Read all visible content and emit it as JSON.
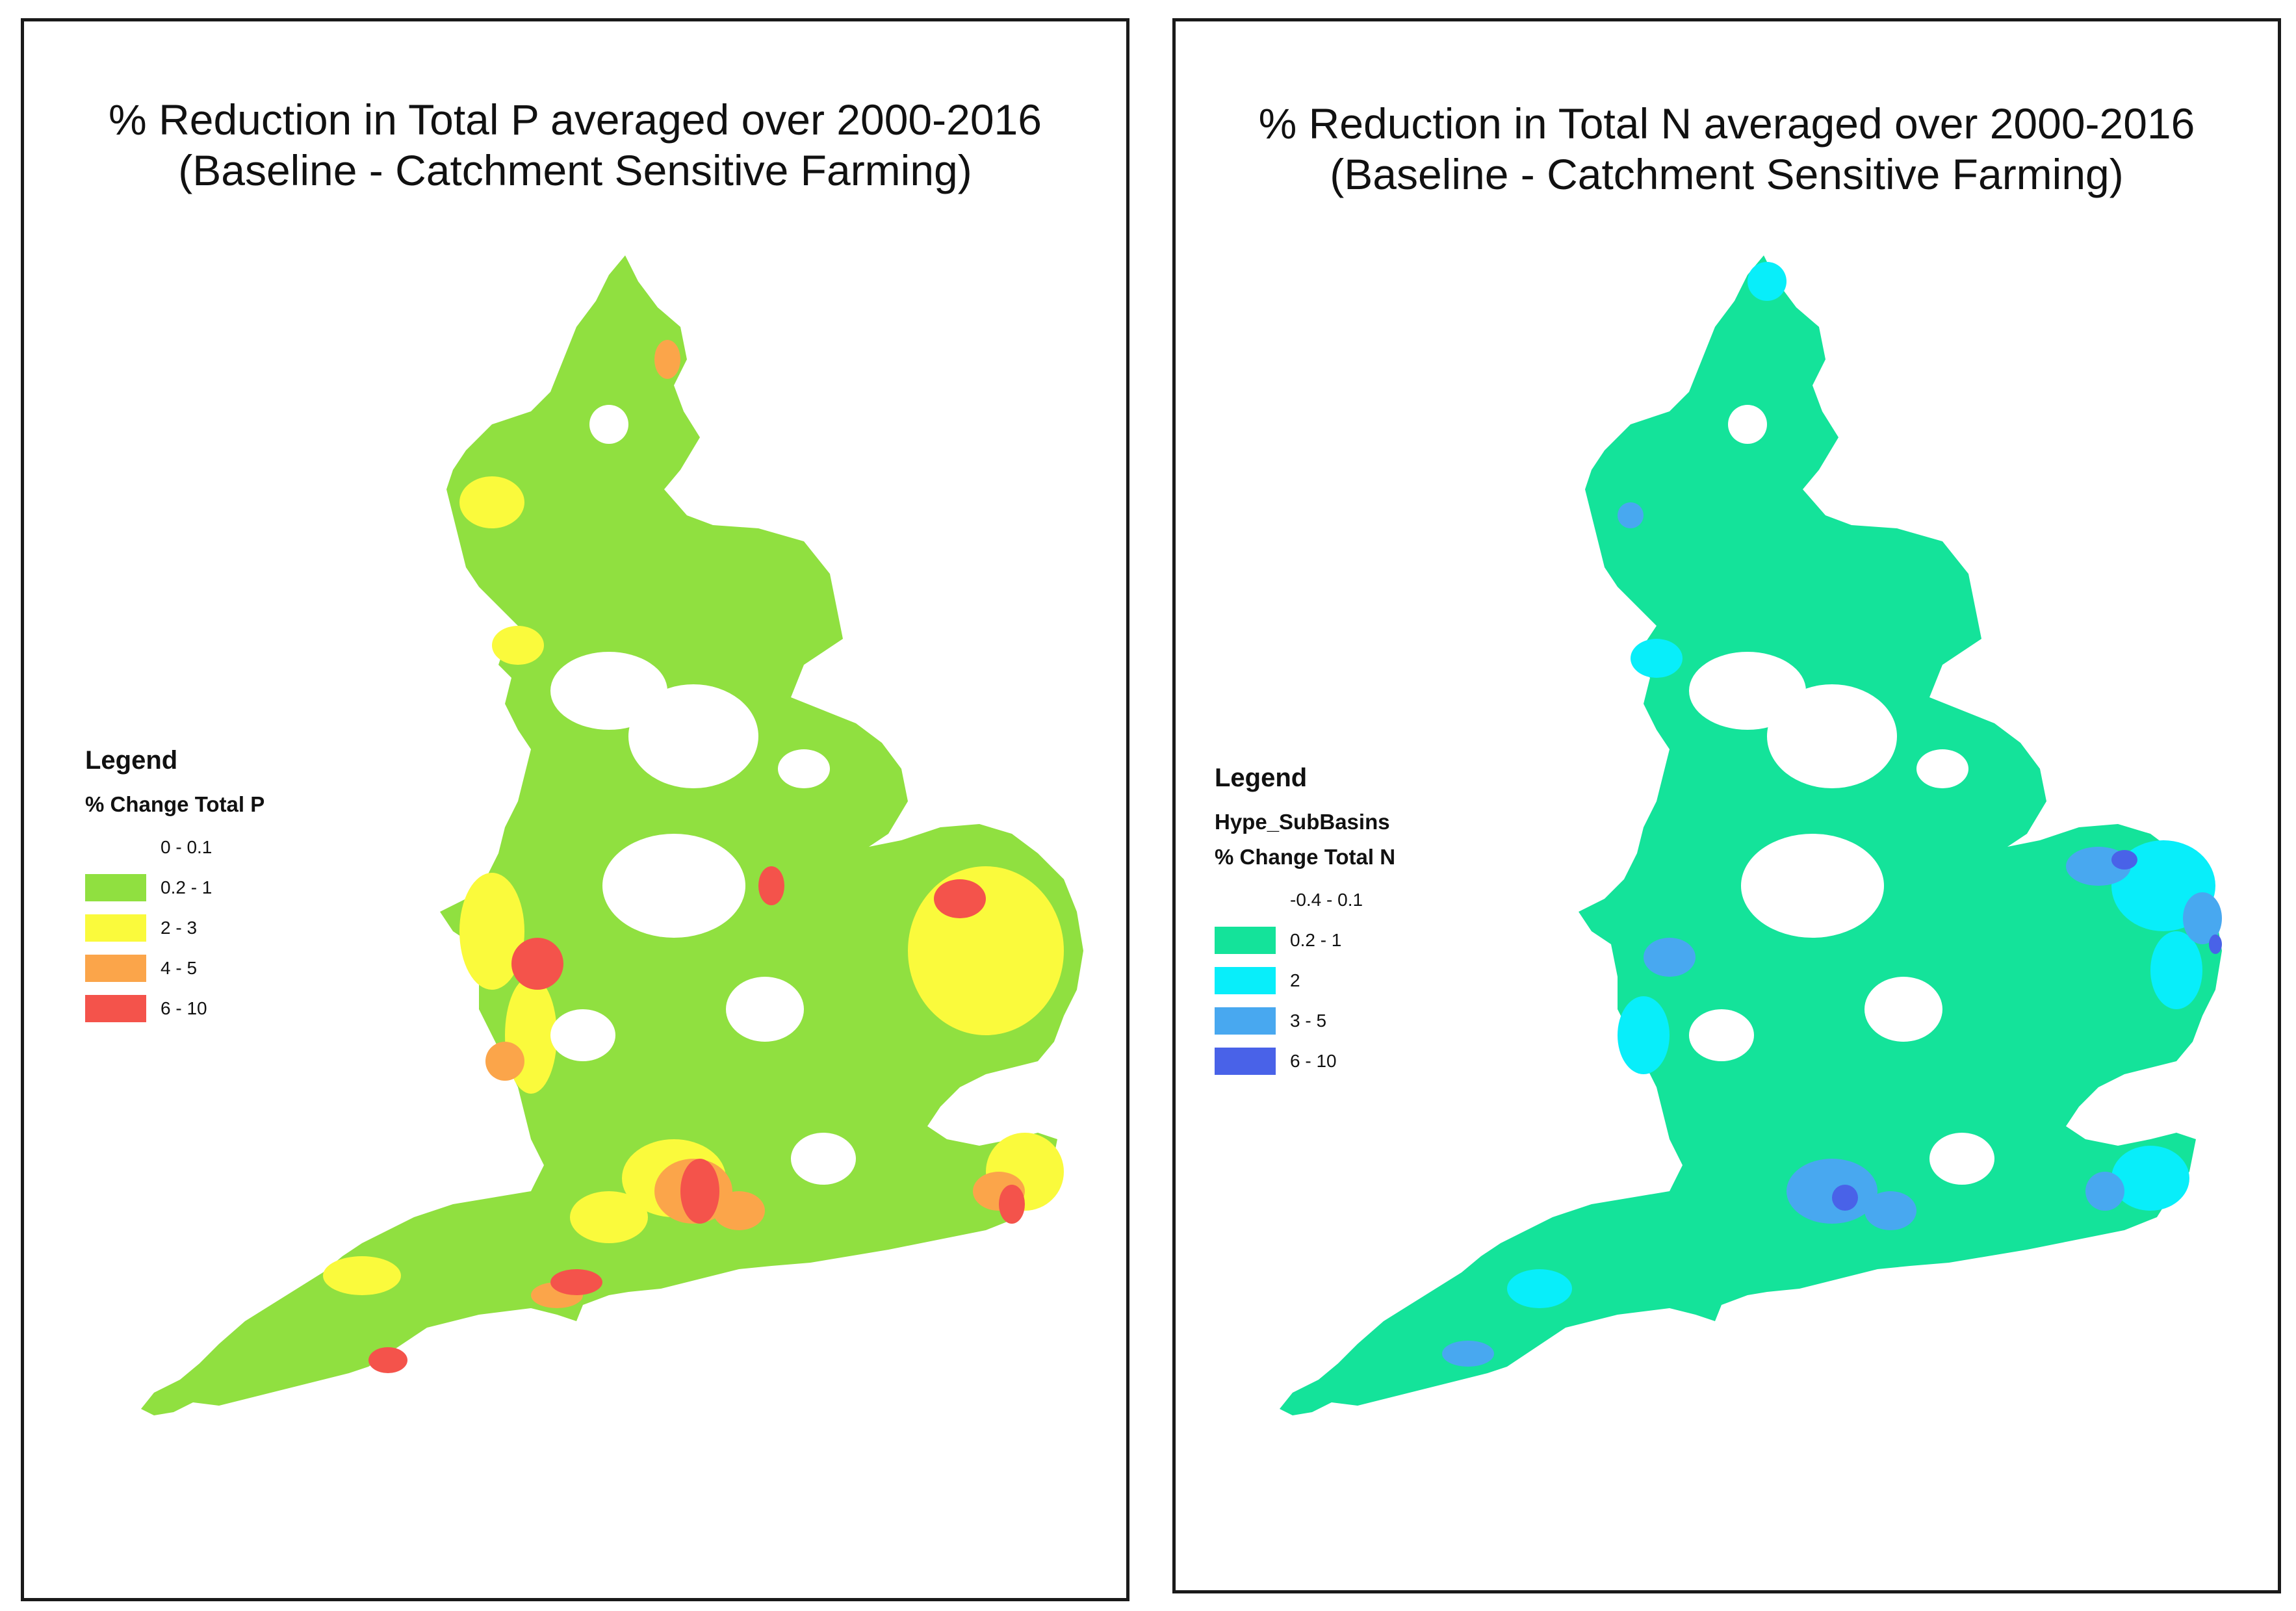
{
  "colors": {
    "background": "#ffffff",
    "border": "#1a1a1a",
    "p_0_01": "#ffffff",
    "p_02_1": "#90e040",
    "p_2_3": "#fafa3c",
    "p_4_5": "#fba54a",
    "p_6_10": "#f4534b",
    "n_neg04_01": "#ffffff",
    "n_02_1": "#14e39a",
    "n_2": "#08eefa",
    "n_3_5": "#48a8f0",
    "n_6_10": "#4962e8"
  },
  "left_panel": {
    "title_line1": "% Reduction in Total P averaged over 2000-2016",
    "title_line2": "(Baseline - Catchment Sensitive Farming)",
    "legend": {
      "heading": "Legend",
      "field": "% Change Total  P",
      "classes": [
        {
          "label": "0 - 0.1",
          "color": "#ffffff"
        },
        {
          "label": "0.2 - 1",
          "color": "#90e040"
        },
        {
          "label": "2 - 3",
          "color": "#fafa3c"
        },
        {
          "label": "4 - 5",
          "color": "#fba54a"
        },
        {
          "label": "6 - 10",
          "color": "#f4534b"
        }
      ]
    }
  },
  "right_panel": {
    "title_line1": "% Reduction in Total N averaged over 2000-2016",
    "title_line2": "(Baseline - Catchment Sensitive Farming)",
    "legend": {
      "heading": "Legend",
      "layer": "Hype_SubBasins",
      "field": "% Change Total N",
      "classes": [
        {
          "label": "-0.4 - 0.1",
          "color": "#ffffff"
        },
        {
          "label": "0.2 - 1",
          "color": "#14e39a"
        },
        {
          "label": "2",
          "color": "#08eefa"
        },
        {
          "label": "3 - 5",
          "color": "#48a8f0"
        },
        {
          "label": "6 - 10",
          "color": "#4962e8"
        }
      ]
    }
  }
}
